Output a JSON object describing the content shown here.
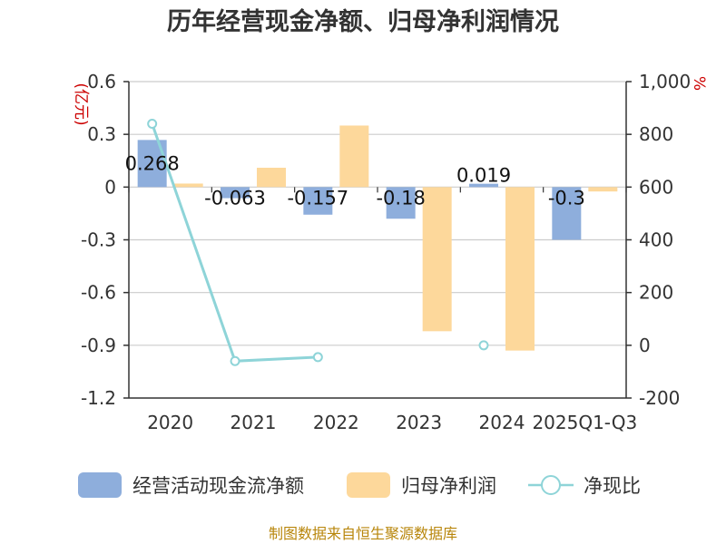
{
  "chart_data": {
    "type": "bar",
    "title": "历年经营现金净额、归母净利润情况",
    "categories": [
      "2020",
      "2021",
      "2022",
      "2023",
      "2024",
      "2025Q1-Q3"
    ],
    "left_axis": {
      "unit": "(亿元)",
      "ylim": [
        -1.2,
        0.6
      ],
      "ticks": [
        0.6,
        0.3,
        0,
        -0.3,
        -0.6,
        -0.9,
        -1.2
      ],
      "tick_labels": [
        "0.6",
        "0.3",
        "0",
        "-0.3",
        "-0.6",
        "-0.9",
        "-1.2"
      ]
    },
    "right_axis": {
      "unit": "%",
      "ylim": [
        -200,
        1000
      ],
      "ticks": [
        1000,
        800,
        600,
        400,
        200,
        0,
        -200
      ],
      "tick_labels": [
        "1,000",
        "800",
        "600",
        "400",
        "200",
        "0",
        "-200"
      ]
    },
    "series": [
      {
        "name": "经营活动现金流净额",
        "type": "bar",
        "axis": "left",
        "color": "#8eaedc",
        "values": [
          0.268,
          -0.063,
          -0.157,
          -0.18,
          0.019,
          -0.3
        ],
        "labels": [
          "0.268",
          "-0.063",
          "-0.157",
          "-0.18",
          "0.019",
          "-0.3"
        ]
      },
      {
        "name": "归母净利润",
        "type": "bar",
        "axis": "left",
        "color": "#fdd89b",
        "values": [
          0.02,
          0.11,
          0.35,
          -0.82,
          -0.93,
          -0.025
        ]
      },
      {
        "name": "净现比",
        "type": "line",
        "axis": "right",
        "color": "#8ed4d8",
        "values": [
          840,
          -60,
          -45,
          null,
          0,
          null
        ]
      }
    ],
    "legend_position": "bottom",
    "source": "制图数据来自恒生聚源数据库"
  }
}
